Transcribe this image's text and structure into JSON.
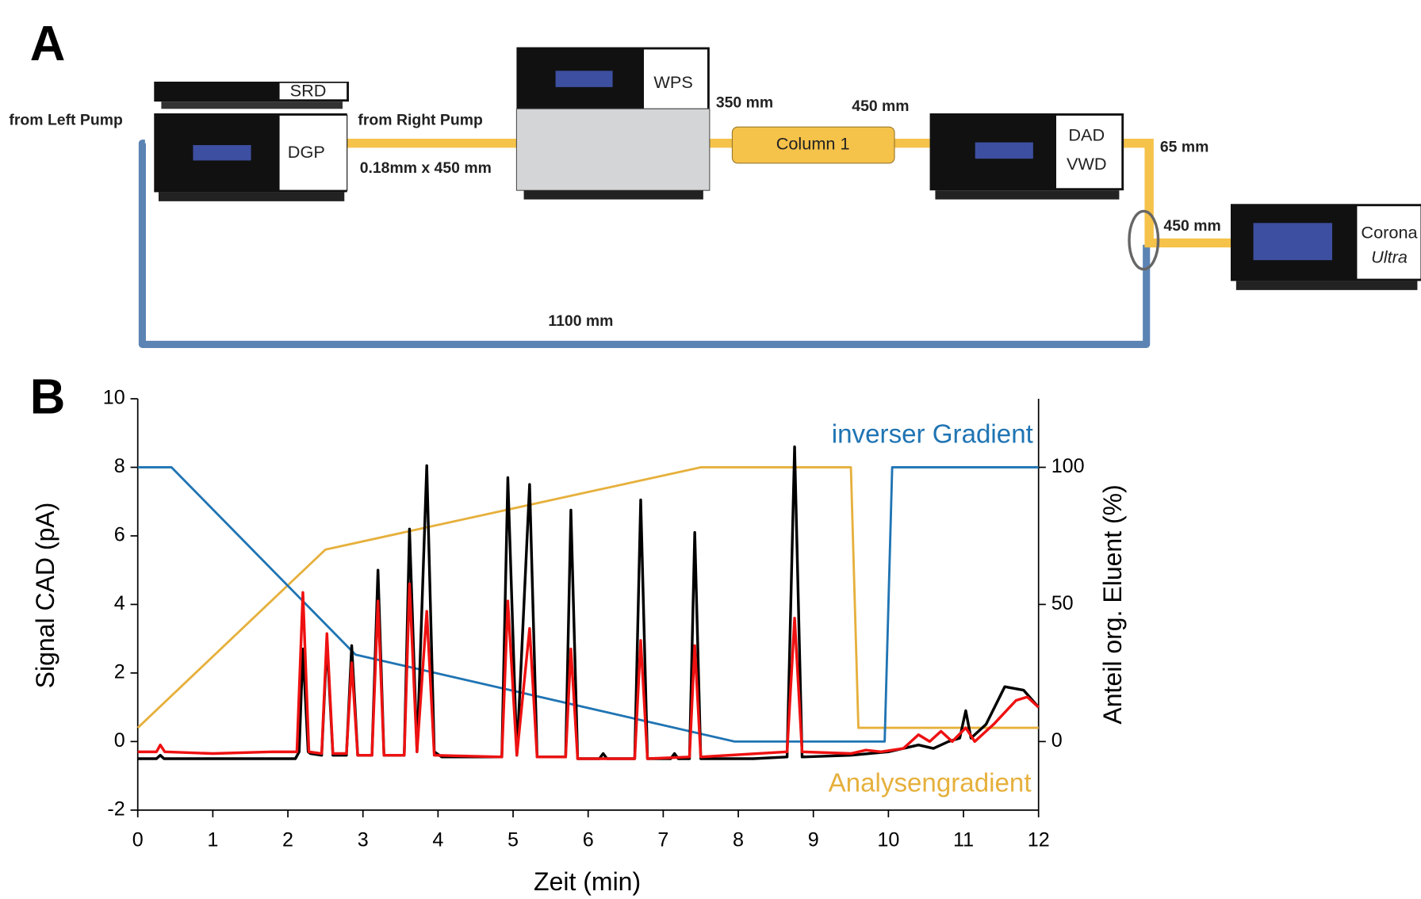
{
  "panel_labels": [
    "A",
    "B"
  ],
  "diagram": {
    "modules": {
      "srd": "SRD",
      "dgp": "DGP",
      "wps": "WPS",
      "detector": [
        "DAD",
        "VWD"
      ],
      "corona": [
        "Corona",
        "Ultra"
      ]
    },
    "column": "Column 1",
    "labels": {
      "left_pump": "from Left Pump",
      "right_pump": "from Right Pump",
      "capillary": "0.18mm x 450 mm",
      "wps_column": "350 mm",
      "column_detector": "450 mm",
      "detector_tee": "65 mm",
      "tee_corona": "450 mm",
      "return": "1100 mm"
    }
  },
  "chart_data": {
    "type": "line",
    "xlabel": "Zeit (min)",
    "ylabel": "Signal CAD (pA)",
    "y2label": "Anteil org. Eluent (%)",
    "xlim": [
      0,
      12
    ],
    "xticks": [
      0,
      1,
      2,
      3,
      4,
      5,
      6,
      7,
      8,
      9,
      10,
      11,
      12
    ],
    "ylim": [
      -2,
      10
    ],
    "yticks": [
      -2,
      0,
      2,
      4,
      6,
      8,
      10
    ],
    "y2lim": [
      -25,
      125
    ],
    "y2ticks": [
      0,
      50,
      100
    ],
    "series": [
      {
        "color": "#000000",
        "x": [
          0,
          0.25,
          0.3,
          0.35,
          2.1,
          2.15,
          2.2,
          2.27,
          2.3,
          2.45,
          2.52,
          2.6,
          2.78,
          2.85,
          2.93,
          3.12,
          3.2,
          3.28,
          3.55,
          3.62,
          3.72,
          3.85,
          3.95,
          4.05,
          4.85,
          4.93,
          5.05,
          5.22,
          5.32,
          5.7,
          5.77,
          5.86,
          6.15,
          6.2,
          6.25,
          6.62,
          6.7,
          6.79,
          7.1,
          7.15,
          7.2,
          7.35,
          7.42,
          7.5,
          8.2,
          8.65,
          8.75,
          8.85,
          9.5,
          10.0,
          10.4,
          10.6,
          10.8,
          10.95,
          11.03,
          11.1,
          11.3,
          11.55,
          11.8,
          12
        ],
        "values": [
          -0.5,
          -0.5,
          -0.4,
          -0.5,
          -0.5,
          -0.3,
          2.7,
          -0.3,
          -0.35,
          -0.4,
          2.9,
          -0.4,
          -0.4,
          2.8,
          -0.4,
          -0.4,
          5.0,
          -0.4,
          -0.4,
          6.2,
          -0.3,
          8.05,
          -0.3,
          -0.45,
          -0.45,
          7.7,
          -0.4,
          7.5,
          -0.45,
          -0.45,
          6.75,
          -0.5,
          -0.5,
          -0.35,
          -0.5,
          -0.5,
          7.05,
          -0.5,
          -0.5,
          -0.35,
          -0.5,
          -0.5,
          6.1,
          -0.5,
          -0.5,
          -0.45,
          8.6,
          -0.45,
          -0.4,
          -0.3,
          -0.1,
          -0.2,
          0.0,
          0.1,
          0.9,
          0.1,
          0.5,
          1.6,
          1.5,
          1.0
        ]
      },
      {
        "color": "#ee1111",
        "x": [
          0,
          0.25,
          0.3,
          0.36,
          1.0,
          1.8,
          2.12,
          2.2,
          2.28,
          2.45,
          2.52,
          2.6,
          2.78,
          2.85,
          2.93,
          3.12,
          3.2,
          3.28,
          3.55,
          3.62,
          3.72,
          3.85,
          3.95,
          4.85,
          4.93,
          5.05,
          5.22,
          5.32,
          5.7,
          5.77,
          5.86,
          6.62,
          6.7,
          6.79,
          7.35,
          7.42,
          7.5,
          8.65,
          8.75,
          8.85,
          9.5,
          9.7,
          9.9,
          10.2,
          10.4,
          10.55,
          10.7,
          10.85,
          11.03,
          11.15,
          11.4,
          11.7,
          11.85,
          12
        ],
        "values": [
          -0.3,
          -0.3,
          -0.1,
          -0.3,
          -0.35,
          -0.3,
          -0.3,
          4.35,
          -0.3,
          -0.35,
          3.15,
          -0.35,
          -0.35,
          2.3,
          -0.4,
          -0.4,
          4.1,
          -0.4,
          -0.4,
          4.6,
          -0.3,
          3.8,
          -0.4,
          -0.45,
          4.1,
          -0.4,
          3.3,
          -0.45,
          -0.45,
          2.7,
          -0.5,
          -0.5,
          2.95,
          -0.5,
          -0.45,
          2.8,
          -0.45,
          -0.3,
          3.6,
          -0.3,
          -0.35,
          -0.25,
          -0.3,
          -0.2,
          0.2,
          0.0,
          0.3,
          0.0,
          0.4,
          0.0,
          0.5,
          1.2,
          1.3,
          1.0
        ]
      },
      {
        "name": "inverser Gradient",
        "color": "#1f74b3",
        "axis": "y2",
        "x": [
          0,
          0.45,
          2.9,
          7.95,
          9.95,
          10.05,
          12
        ],
        "values": [
          100,
          100,
          31.7,
          0,
          0,
          100,
          100
        ]
      },
      {
        "name": "Analysengradient",
        "color": "#e6b03c",
        "axis": "y2",
        "x": [
          0,
          2.5,
          7.5,
          9.5,
          9.6,
          12
        ],
        "values": [
          5,
          70,
          100,
          100,
          5,
          5
        ]
      }
    ]
  }
}
